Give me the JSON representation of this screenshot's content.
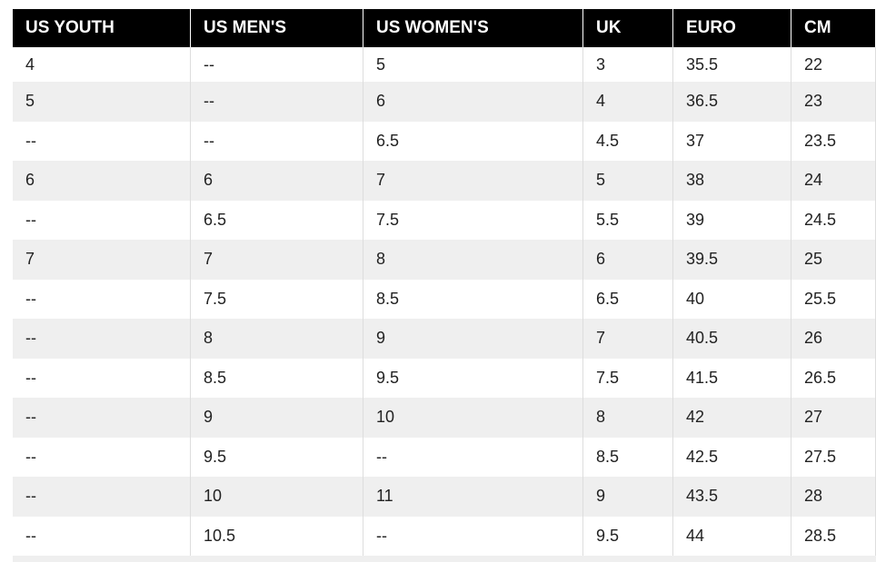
{
  "table": {
    "header": [
      "US YOUTH",
      "US MEN'S",
      "US WOMEN'S",
      "UK",
      "EURO",
      "CM"
    ],
    "rows": [
      [
        "4",
        "--",
        "5",
        "3",
        "35.5",
        "22"
      ],
      [
        "5",
        "--",
        "6",
        "4",
        "36.5",
        "23"
      ],
      [
        "--",
        "--",
        "6.5",
        "4.5",
        "37",
        "23.5"
      ],
      [
        "6",
        "6",
        "7",
        "5",
        "38",
        "24"
      ],
      [
        "--",
        "6.5",
        "7.5",
        "5.5",
        "39",
        "24.5"
      ],
      [
        "7",
        "7",
        "8",
        "6",
        "39.5",
        "25"
      ],
      [
        "--",
        "7.5",
        "8.5",
        "6.5",
        "40",
        "25.5"
      ],
      [
        "--",
        "8",
        "9",
        "7",
        "40.5",
        "26"
      ],
      [
        "--",
        "8.5",
        "9.5",
        "7.5",
        "41.5",
        "26.5"
      ],
      [
        "--",
        "9",
        "10",
        "8",
        "42",
        "27"
      ],
      [
        "--",
        "9.5",
        "--",
        "8.5",
        "42.5",
        "27.5"
      ],
      [
        "--",
        "10",
        "11",
        "9",
        "43.5",
        "28"
      ],
      [
        "--",
        "10.5",
        "--",
        "9.5",
        "44",
        "28.5"
      ]
    ]
  }
}
